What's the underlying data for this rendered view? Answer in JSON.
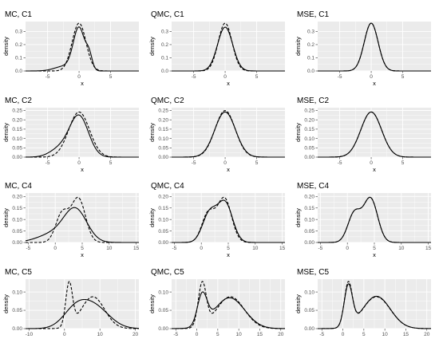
{
  "figure": {
    "background": "#ffffff",
    "panel_background": "#ebebeb",
    "grid_color": "#ffffff",
    "line_color": "#000000"
  },
  "chart_data": [
    {
      "id": "mc-c1",
      "title": "MC, C1",
      "type": "line",
      "xlabel": "x",
      "ylabel": "density",
      "xlim": [
        -8.5,
        9.5
      ],
      "ylim": [
        0,
        0.375
      ],
      "x_ticks": [
        -5,
        0,
        5
      ],
      "y_ticks": [
        0.0,
        0.1,
        0.2,
        0.3
      ],
      "y_tick_labels": [
        "0.0",
        "0.1",
        "0.2",
        "0.3"
      ],
      "grid": true,
      "series": [
        {
          "style": "solid",
          "components": [
            {
              "w": 0.72,
              "mu": 0,
              "sd": 0.9
            },
            {
              "w": 0.13,
              "mu": 1.6,
              "sd": 0.5
            },
            {
              "w": 0.15,
              "mu": -2.2,
              "sd": 1.6
            }
          ]
        },
        {
          "style": "dashed",
          "components": [
            {
              "w": 1,
              "mu": 0,
              "sd": 1.1
            }
          ]
        }
      ]
    },
    {
      "id": "qmc-c1",
      "title": "QMC, C1",
      "type": "line",
      "xlabel": "x",
      "ylabel": "density",
      "xlim": [
        -8.5,
        9.5
      ],
      "ylim": [
        0,
        0.375
      ],
      "x_ticks": [
        -5,
        0,
        5
      ],
      "y_ticks": [
        0.0,
        0.1,
        0.2,
        0.3
      ],
      "y_tick_labels": [
        "0.0",
        "0.1",
        "0.2",
        "0.3"
      ],
      "grid": true,
      "series": [
        {
          "style": "solid",
          "components": [
            {
              "w": 1,
              "mu": 0,
              "sd": 1.2
            }
          ]
        },
        {
          "style": "dashed",
          "components": [
            {
              "w": 1,
              "mu": 0,
              "sd": 1.1
            }
          ]
        }
      ]
    },
    {
      "id": "mse-c1",
      "title": "MSE, C1",
      "type": "line",
      "xlabel": "x",
      "ylabel": "density",
      "xlim": [
        -8.5,
        9.5
      ],
      "ylim": [
        0,
        0.375
      ],
      "x_ticks": [
        -5,
        0,
        5
      ],
      "y_ticks": [
        0.0,
        0.1,
        0.2,
        0.3
      ],
      "y_tick_labels": [
        "0.0",
        "0.1",
        "0.2",
        "0.3"
      ],
      "grid": true,
      "series": [
        {
          "style": "solid",
          "components": [
            {
              "w": 1,
              "mu": 0,
              "sd": 1.1
            }
          ]
        },
        {
          "style": "dashed",
          "components": [
            {
              "w": 1,
              "mu": 0,
              "sd": 1.1
            }
          ]
        }
      ]
    },
    {
      "id": "mc-c2",
      "title": "MC, C2",
      "type": "line",
      "xlabel": "x",
      "ylabel": "density",
      "xlim": [
        -8.5,
        9.5
      ],
      "ylim": [
        0,
        0.265
      ],
      "x_ticks": [
        -5,
        0,
        5
      ],
      "y_ticks": [
        0.0,
        0.05,
        0.1,
        0.15,
        0.2,
        0.25
      ],
      "y_tick_labels": [
        "0.00",
        "0.05",
        "0.10",
        "0.15",
        "0.20",
        "0.25"
      ],
      "grid": true,
      "series": [
        {
          "style": "solid",
          "components": [
            {
              "w": 0.82,
              "mu": 0,
              "sd": 1.5
            },
            {
              "w": 0.18,
              "mu": -3,
              "sd": 1.6
            }
          ]
        },
        {
          "style": "dashed",
          "components": [
            {
              "w": 1,
              "mu": 0,
              "sd": 1.65
            }
          ]
        }
      ]
    },
    {
      "id": "qmc-c2",
      "title": "QMC, C2",
      "type": "line",
      "xlabel": "x",
      "ylabel": "density",
      "xlim": [
        -8.5,
        9.5
      ],
      "ylim": [
        0,
        0.265
      ],
      "x_ticks": [
        -5,
        0,
        5
      ],
      "y_ticks": [
        0.0,
        0.05,
        0.1,
        0.15,
        0.2,
        0.25
      ],
      "y_tick_labels": [
        "0.00",
        "0.05",
        "0.10",
        "0.15",
        "0.20",
        "0.25"
      ],
      "grid": true,
      "series": [
        {
          "style": "solid",
          "components": [
            {
              "w": 1,
              "mu": 0,
              "sd": 1.65
            }
          ]
        },
        {
          "style": "dashed",
          "components": [
            {
              "w": 1,
              "mu": 0,
              "sd": 1.6
            }
          ]
        }
      ]
    },
    {
      "id": "mse-c2",
      "title": "MSE, C2",
      "type": "line",
      "xlabel": "x",
      "ylabel": "density",
      "xlim": [
        -8.5,
        9.5
      ],
      "ylim": [
        0,
        0.265
      ],
      "x_ticks": [
        -5,
        0,
        5
      ],
      "y_ticks": [
        0.0,
        0.05,
        0.1,
        0.15,
        0.2,
        0.25
      ],
      "y_tick_labels": [
        "0.00",
        "0.05",
        "0.10",
        "0.15",
        "0.20",
        "0.25"
      ],
      "grid": true,
      "series": [
        {
          "style": "solid",
          "components": [
            {
              "w": 1,
              "mu": 0,
              "sd": 1.65
            }
          ]
        },
        {
          "style": "dashed",
          "components": [
            {
              "w": 1,
              "mu": 0,
              "sd": 1.65
            }
          ]
        }
      ]
    },
    {
      "id": "mc-c4",
      "title": "MC, C4",
      "type": "line",
      "xlabel": "x",
      "ylabel": "density",
      "xlim": [
        -5.5,
        15.5
      ],
      "ylim": [
        0,
        0.215
      ],
      "x_ticks": [
        -5,
        0,
        5,
        10,
        15
      ],
      "y_ticks": [
        0.0,
        0.05,
        0.1,
        0.15,
        0.2
      ],
      "y_tick_labels": [
        "0.00",
        "0.05",
        "0.10",
        "0.15",
        "0.20"
      ],
      "grid": true,
      "series": [
        {
          "style": "solid",
          "components": [
            {
              "w": 0.7,
              "mu": 3.8,
              "sd": 2.1
            },
            {
              "w": 0.3,
              "mu": 0,
              "sd": 3
            }
          ]
        },
        {
          "style": "dashed",
          "components": [
            {
              "w": 0.38,
              "mu": 1.3,
              "sd": 1.2
            },
            {
              "w": 0.62,
              "mu": 4.3,
              "sd": 1.3
            }
          ]
        }
      ]
    },
    {
      "id": "qmc-c4",
      "title": "QMC, C4",
      "type": "line",
      "xlabel": "x",
      "ylabel": "density",
      "xlim": [
        -5.5,
        15.5
      ],
      "ylim": [
        0,
        0.215
      ],
      "x_ticks": [
        -5,
        0,
        5,
        10,
        15
      ],
      "y_ticks": [
        0.0,
        0.05,
        0.1,
        0.15,
        0.2
      ],
      "y_tick_labels": [
        "0.00",
        "0.05",
        "0.10",
        "0.15",
        "0.20"
      ],
      "grid": true,
      "series": [
        {
          "style": "solid",
          "components": [
            {
              "w": 0.4,
              "mu": 1.5,
              "sd": 1.3
            },
            {
              "w": 0.6,
              "mu": 4.4,
              "sd": 1.4
            }
          ]
        },
        {
          "style": "dashed",
          "components": [
            {
              "w": 0.38,
              "mu": 1.3,
              "sd": 1.2
            },
            {
              "w": 0.62,
              "mu": 4.3,
              "sd": 1.3
            }
          ]
        }
      ]
    },
    {
      "id": "mse-c4",
      "title": "MSE, C4",
      "type": "line",
      "xlabel": "x",
      "ylabel": "density",
      "xlim": [
        -5.5,
        15.5
      ],
      "ylim": [
        0,
        0.215
      ],
      "x_ticks": [
        -5,
        0,
        5,
        10,
        15
      ],
      "y_ticks": [
        0.0,
        0.05,
        0.1,
        0.15,
        0.2
      ],
      "y_tick_labels": [
        "0.00",
        "0.05",
        "0.10",
        "0.15",
        "0.20"
      ],
      "grid": true,
      "series": [
        {
          "style": "solid",
          "components": [
            {
              "w": 0.38,
              "mu": 1.3,
              "sd": 1.2
            },
            {
              "w": 0.62,
              "mu": 4.3,
              "sd": 1.3
            }
          ]
        },
        {
          "style": "dashed",
          "components": [
            {
              "w": 0.38,
              "mu": 1.3,
              "sd": 1.2
            },
            {
              "w": 0.62,
              "mu": 4.3,
              "sd": 1.3
            }
          ]
        }
      ]
    },
    {
      "id": "mc-c5",
      "title": "MC, C5",
      "type": "line",
      "xlabel": "x",
      "ylabel": "density",
      "xlim": [
        -11,
        21
      ],
      "ylim": [
        0,
        0.135
      ],
      "x_ticks": [
        -10,
        0,
        10,
        20
      ],
      "y_ticks": [
        0.0,
        0.05,
        0.1
      ],
      "y_tick_labels": [
        "0.00",
        "0.05",
        "0.10"
      ],
      "grid": true,
      "series": [
        {
          "style": "solid",
          "components": [
            {
              "w": 0.4,
              "mu": 3,
              "sd": 3.5
            },
            {
              "w": 0.6,
              "mu": 8.5,
              "sd": 4.2
            }
          ]
        },
        {
          "style": "dashed",
          "components": [
            {
              "w": 0.28,
              "mu": 1.3,
              "sd": 0.95
            },
            {
              "w": 0.72,
              "mu": 8,
              "sd": 3.3
            }
          ]
        }
      ]
    },
    {
      "id": "qmc-c5",
      "title": "QMC, C5",
      "type": "line",
      "xlabel": "x",
      "ylabel": "density",
      "xlim": [
        -6,
        21
      ],
      "ylim": [
        0,
        0.135
      ],
      "x_ticks": [
        -5,
        0,
        5,
        10,
        15,
        20
      ],
      "y_ticks": [
        0.0,
        0.05,
        0.1
      ],
      "y_tick_labels": [
        "0.00",
        "0.05",
        "0.10"
      ],
      "grid": true,
      "series": [
        {
          "style": "solid",
          "components": [
            {
              "w": 0.24,
              "mu": 1.3,
              "sd": 1.15
            },
            {
              "w": 0.76,
              "mu": 7.8,
              "sd": 3.6
            }
          ]
        },
        {
          "style": "dashed",
          "components": [
            {
              "w": 0.28,
              "mu": 1.3,
              "sd": 0.95
            },
            {
              "w": 0.72,
              "mu": 8,
              "sd": 3.3
            }
          ]
        }
      ]
    },
    {
      "id": "mse-c5",
      "title": "MSE, C5",
      "type": "line",
      "xlabel": "x",
      "ylabel": "density",
      "xlim": [
        -6,
        21
      ],
      "ylim": [
        0,
        0.135
      ],
      "x_ticks": [
        -5,
        0,
        5,
        10,
        15,
        20
      ],
      "y_ticks": [
        0.0,
        0.05,
        0.1
      ],
      "y_tick_labels": [
        "0.00",
        "0.05",
        "0.10"
      ],
      "grid": true,
      "series": [
        {
          "style": "solid",
          "components": [
            {
              "w": 0.27,
              "mu": 1.3,
              "sd": 0.97
            },
            {
              "w": 0.73,
              "mu": 8,
              "sd": 3.3
            }
          ]
        },
        {
          "style": "dashed",
          "components": [
            {
              "w": 0.28,
              "mu": 1.3,
              "sd": 0.95
            },
            {
              "w": 0.72,
              "mu": 8,
              "sd": 3.3
            }
          ]
        }
      ]
    }
  ]
}
